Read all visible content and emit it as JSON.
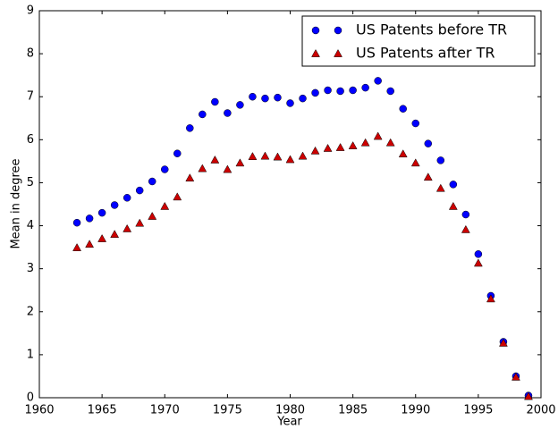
{
  "chart_data": {
    "type": "scatter",
    "x_label": "Year",
    "y_label": "Mean in degree",
    "x": [
      1963,
      1964,
      1965,
      1966,
      1967,
      1968,
      1969,
      1970,
      1971,
      1972,
      1973,
      1974,
      1975,
      1976,
      1977,
      1978,
      1979,
      1980,
      1981,
      1982,
      1983,
      1984,
      1985,
      1986,
      1987,
      1988,
      1989,
      1990,
      1991,
      1992,
      1993,
      1994,
      1995,
      1996,
      1997,
      1998,
      1999
    ],
    "series": [
      {
        "name": "US Patents before TR",
        "color": "#0000ff",
        "marker": "circle",
        "values": [
          4.07,
          4.17,
          4.3,
          4.48,
          4.65,
          4.82,
          5.03,
          5.31,
          5.68,
          6.27,
          6.59,
          6.88,
          6.62,
          6.81,
          7.0,
          6.96,
          6.98,
          6.85,
          6.96,
          7.09,
          7.15,
          7.13,
          7.15,
          7.21,
          7.37,
          7.13,
          6.72,
          6.38,
          5.91,
          5.52,
          4.96,
          4.26,
          3.34,
          2.37,
          1.3,
          0.5,
          0.05
        ]
      },
      {
        "name": "US Patents after TR",
        "color": "#cc0000",
        "marker": "triangle",
        "values": [
          3.49,
          3.57,
          3.7,
          3.8,
          3.93,
          4.06,
          4.22,
          4.45,
          4.67,
          5.11,
          5.33,
          5.53,
          5.31,
          5.46,
          5.61,
          5.62,
          5.6,
          5.54,
          5.62,
          5.74,
          5.8,
          5.82,
          5.86,
          5.93,
          6.08,
          5.93,
          5.67,
          5.46,
          5.13,
          4.87,
          4.45,
          3.91,
          3.13,
          2.3,
          1.27,
          0.48,
          0.03
        ]
      }
    ],
    "xlim": [
      1960,
      2000
    ],
    "xticks": [
      1960,
      1965,
      1970,
      1975,
      1980,
      1985,
      1990,
      1995,
      2000
    ],
    "ylim": [
      0,
      9
    ],
    "yticks": [
      0,
      1,
      2,
      3,
      4,
      5,
      6,
      7,
      8,
      9
    ],
    "grid": false,
    "legend": "upper right"
  }
}
